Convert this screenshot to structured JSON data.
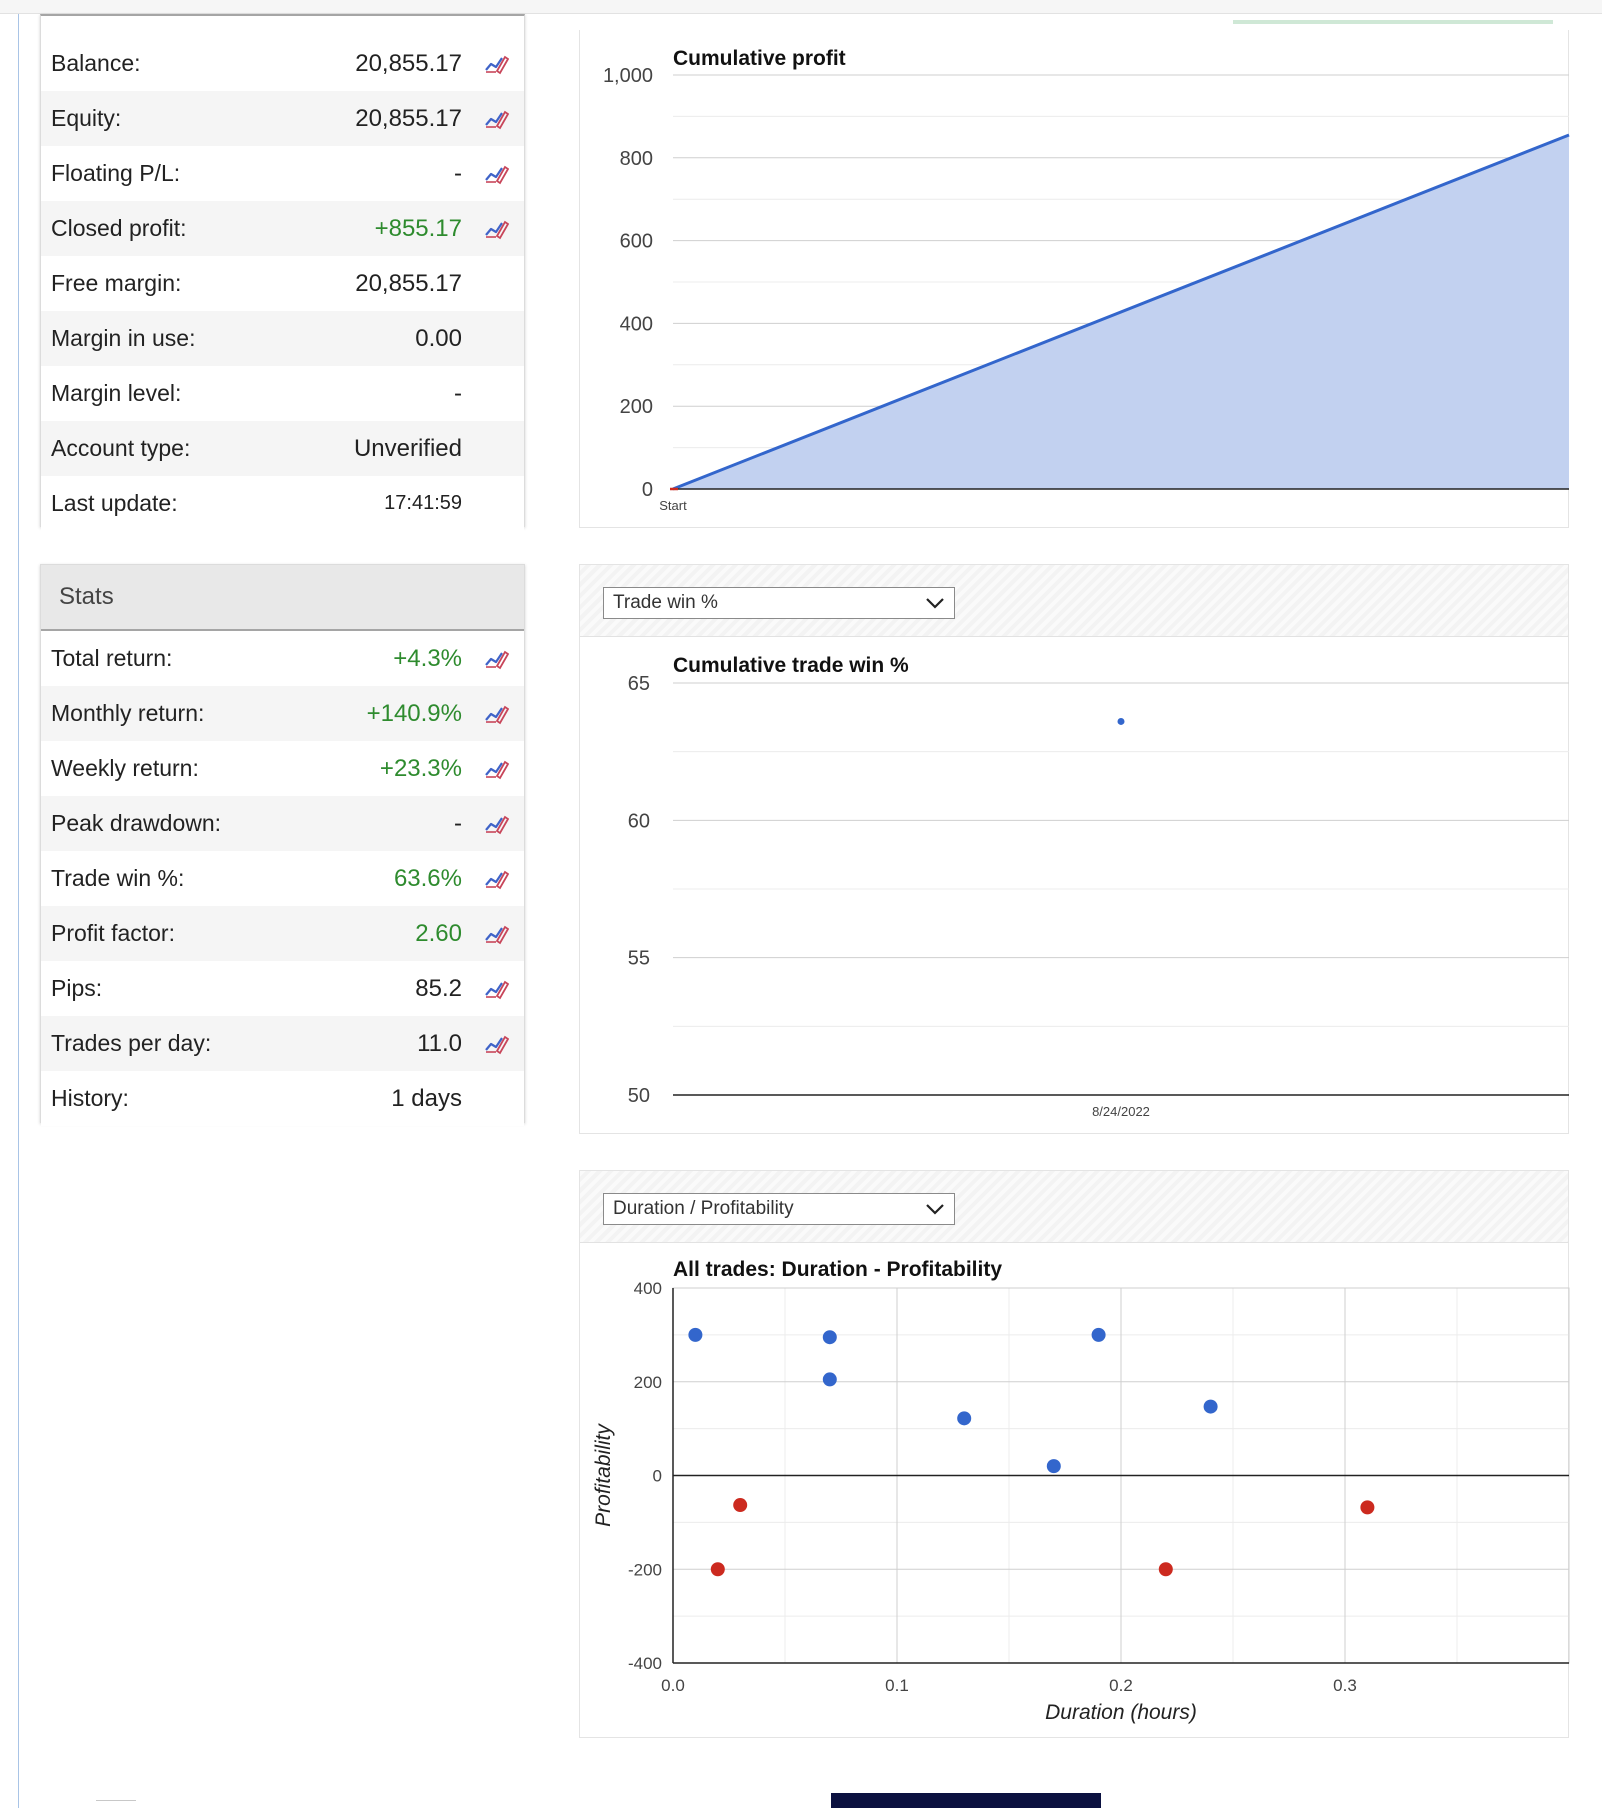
{
  "account": {
    "rows": [
      {
        "label": "Balance:",
        "value": "20,855.17",
        "color": "normal",
        "icon": "chart-edit-icon"
      },
      {
        "label": "Equity:",
        "value": "20,855.17",
        "color": "normal",
        "icon": "chart-edit-icon"
      },
      {
        "label": "Floating P/L:",
        "value": "-",
        "color": "normal",
        "icon": "chart-edit-icon"
      },
      {
        "label": "Closed profit:",
        "value": "+855.17",
        "color": "green",
        "icon": "chart-edit-icon"
      },
      {
        "label": "Free margin:",
        "value": "20,855.17",
        "color": "normal",
        "icon": ""
      },
      {
        "label": "Margin in use:",
        "value": "0.00",
        "color": "normal",
        "icon": ""
      },
      {
        "label": "Margin level:",
        "value": "-",
        "color": "normal",
        "icon": ""
      },
      {
        "label": "Account type:",
        "value": "Unverified",
        "color": "normal",
        "icon": ""
      },
      {
        "label": "Last update:",
        "value": "17:41:59",
        "color": "small",
        "icon": ""
      }
    ]
  },
  "stats": {
    "title": "Stats",
    "rows": [
      {
        "label": "Total return:",
        "value": "+4.3%",
        "color": "green",
        "icon": "chart-edit-icon"
      },
      {
        "label": "Monthly return:",
        "value": "+140.9%",
        "color": "green",
        "icon": "chart-edit-icon"
      },
      {
        "label": "Weekly return:",
        "value": "+23.3%",
        "color": "green",
        "icon": "chart-edit-icon"
      },
      {
        "label": "Peak drawdown:",
        "value": "-",
        "color": "normal",
        "icon": "chart-edit-icon"
      },
      {
        "label": "Trade win %:",
        "value": "63.6%",
        "color": "green",
        "icon": "chart-edit-icon"
      },
      {
        "label": "Profit factor:",
        "value": "2.60",
        "color": "green",
        "icon": "chart-edit-icon"
      },
      {
        "label": "Pips:",
        "value": "85.2",
        "color": "normal",
        "icon": "chart-edit-icon"
      },
      {
        "label": "Trades per day:",
        "value": "11.0",
        "color": "normal",
        "icon": "chart-edit-icon"
      },
      {
        "label": "History:",
        "value": "1 days",
        "color": "normal",
        "icon": ""
      }
    ]
  },
  "dropdowns": {
    "winrate_selected": "Trade win %",
    "duration_selected": "Duration / Profitability"
  },
  "colors": {
    "series_blue": "#3366cc",
    "area_fill": "#c2d1f0",
    "loss_red": "#cc2a1f",
    "positive_green": "#2e8b2e"
  },
  "chart_data": [
    {
      "type": "area",
      "title": "Cumulative profit",
      "categories": [
        "Start"
      ],
      "x": [
        0,
        1
      ],
      "values": [
        0,
        855.17
      ],
      "ylim": [
        0,
        1000
      ],
      "yticks": [
        0,
        200,
        400,
        600,
        800,
        1000
      ],
      "ytick_labels": [
        "0",
        "200",
        "400",
        "600",
        "800",
        "1,000"
      ],
      "grid": true
    },
    {
      "type": "scatter",
      "title": "Cumulative trade win %",
      "categories": [
        "8/24/2022"
      ],
      "values": [
        63.6
      ],
      "ylim": [
        50,
        65
      ],
      "yticks": [
        50,
        55,
        60,
        65
      ],
      "grid": true
    },
    {
      "type": "scatter",
      "title": "All trades: Duration - Profitability",
      "xlabel": "Duration (hours)",
      "ylabel": "Profitability",
      "xlim": [
        0,
        0.4
      ],
      "ylim": [
        -400,
        400
      ],
      "xticks": [
        0,
        0.1,
        0.2,
        0.3
      ],
      "xtick_labels": [
        "0.0",
        "0.1",
        "0.2",
        "0.3"
      ],
      "yticks": [
        -400,
        -200,
        0,
        200,
        400
      ],
      "grid": true,
      "points": [
        {
          "x": 0.01,
          "y": 300
        },
        {
          "x": 0.07,
          "y": 295
        },
        {
          "x": 0.07,
          "y": 205
        },
        {
          "x": 0.13,
          "y": 122
        },
        {
          "x": 0.17,
          "y": 20
        },
        {
          "x": 0.19,
          "y": 300
        },
        {
          "x": 0.24,
          "y": 147
        },
        {
          "x": 0.02,
          "y": -200
        },
        {
          "x": 0.03,
          "y": -63
        },
        {
          "x": 0.22,
          "y": -200
        },
        {
          "x": 0.31,
          "y": -68
        }
      ]
    }
  ]
}
